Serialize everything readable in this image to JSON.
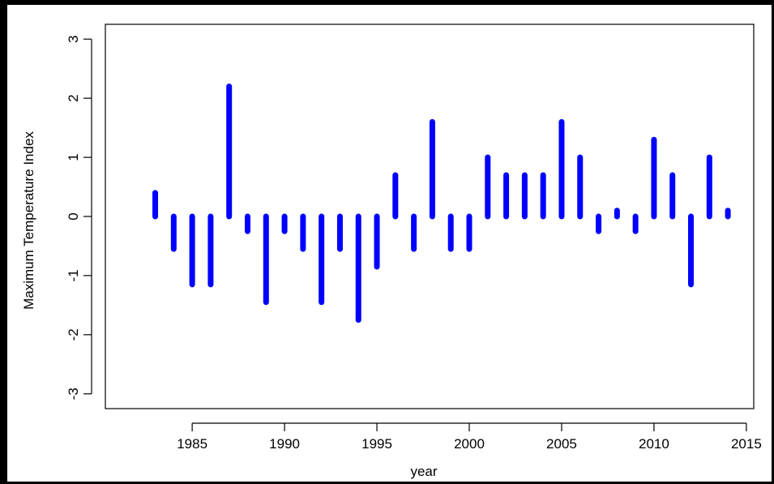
{
  "chart_data": {
    "type": "bar",
    "style": "histogram-lines",
    "xlabel": "year",
    "ylabel": "Maximum Temperature Index",
    "x": [
      1983,
      1984,
      1985,
      1986,
      1987,
      1988,
      1989,
      1990,
      1991,
      1992,
      1993,
      1994,
      1995,
      1996,
      1997,
      1998,
      1999,
      2000,
      2001,
      2002,
      2003,
      2004,
      2005,
      2006,
      2007,
      2008,
      2009,
      2010,
      2011,
      2012,
      2013,
      2014
    ],
    "values": [
      0.4,
      -0.55,
      -1.15,
      -1.15,
      2.2,
      -0.25,
      -1.45,
      -0.25,
      -0.55,
      -1.45,
      -0.55,
      -1.75,
      -0.85,
      0.7,
      -0.55,
      1.6,
      -0.55,
      -0.55,
      1.0,
      0.7,
      0.7,
      0.7,
      1.6,
      1.0,
      -0.25,
      0.1,
      -0.25,
      1.3,
      0.7,
      -1.15,
      1.0,
      0.1
    ],
    "xlim": [
      1980.3,
      2015.4
    ],
    "ylim": [
      -3.25,
      3.25
    ],
    "x_ticks": [
      1985,
      1990,
      1995,
      2000,
      2005,
      2010,
      2015
    ],
    "x_tick_labels": [
      "1985",
      "1990",
      "1995",
      "2000",
      "2005",
      "2010",
      "2015"
    ],
    "y_ticks": [
      -3,
      -2,
      -1,
      0,
      1,
      2,
      3
    ],
    "y_tick_labels": [
      "-3",
      "-2",
      "-1",
      "0",
      "1",
      "2",
      "3"
    ],
    "bar_color": "#0000ff",
    "grid": false,
    "legend": "none"
  }
}
